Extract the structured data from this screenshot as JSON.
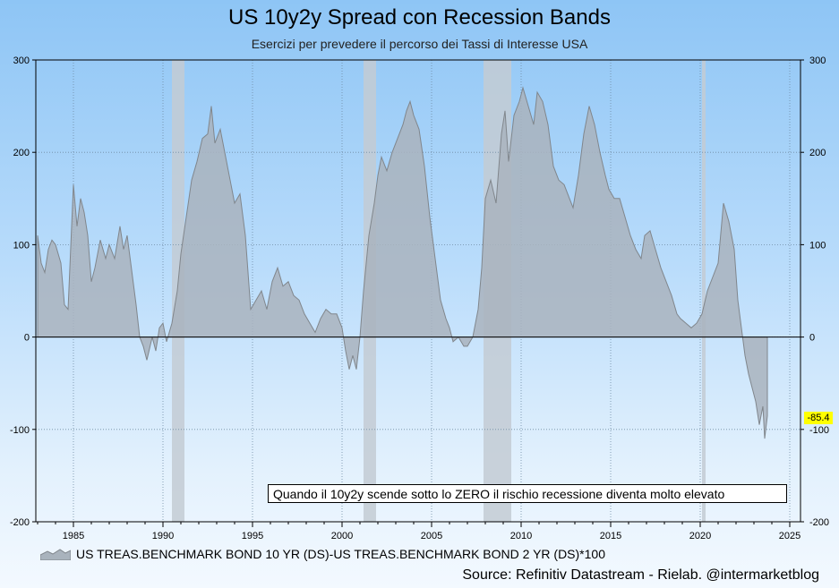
{
  "title": "US 10y2y Spread con Recession Bands",
  "subtitle": "Esercizi per prevedere il percorso dei Tassi di Interesse USA",
  "annotation": "Quando il 10y2y scende sotto lo ZERO il rischio recessione diventa molto elevato",
  "source": "Source: Refinitiv Datastream  -  Rielab. @intermarketblog",
  "last_value_label": "-85.4",
  "colors": {
    "area_fill": "#a9b3bd",
    "area_line": "#80868c",
    "recession_band": "#c3cbd3",
    "zero_line": "#000000",
    "badge": "#ffff00"
  },
  "chart_data": {
    "type": "area",
    "title": "US 10y2y Spread con Recession Bands",
    "xlabel": "",
    "ylabel": "",
    "xlim": [
      1982.9,
      2025.6
    ],
    "ylim": [
      -200,
      300
    ],
    "x_ticks": [
      "1985",
      "1990",
      "1995",
      "2000",
      "2005",
      "2010",
      "2015",
      "2020",
      "2025"
    ],
    "y_ticks": [
      "300",
      "200",
      "100",
      "0",
      "-100",
      "-200"
    ],
    "grid": true,
    "legend_position": "bottom-left",
    "recession_bands": [
      {
        "start": 1990.5,
        "end": 1991.2
      },
      {
        "start": 2001.2,
        "end": 2001.9
      },
      {
        "start": 2007.9,
        "end": 2009.45
      },
      {
        "start": 2020.1,
        "end": 2020.3
      }
    ],
    "series": [
      {
        "name": "US TREAS.BENCHMARK BOND 10 YR (DS)-US TREAS.BENCHMARK BOND 2 YR (DS)*100",
        "points": [
          [
            1983.0,
            110
          ],
          [
            1983.2,
            80
          ],
          [
            1983.4,
            70
          ],
          [
            1983.6,
            95
          ],
          [
            1983.8,
            105
          ],
          [
            1984.0,
            100
          ],
          [
            1984.3,
            80
          ],
          [
            1984.5,
            35
          ],
          [
            1984.7,
            30
          ],
          [
            1984.9,
            120
          ],
          [
            1985.0,
            165
          ],
          [
            1985.2,
            120
          ],
          [
            1985.4,
            150
          ],
          [
            1985.6,
            135
          ],
          [
            1985.8,
            110
          ],
          [
            1986.0,
            60
          ],
          [
            1986.2,
            75
          ],
          [
            1986.5,
            105
          ],
          [
            1986.8,
            85
          ],
          [
            1987.0,
            100
          ],
          [
            1987.3,
            85
          ],
          [
            1987.6,
            120
          ],
          [
            1987.8,
            95
          ],
          [
            1988.0,
            110
          ],
          [
            1988.2,
            80
          ],
          [
            1988.5,
            35
          ],
          [
            1988.7,
            0
          ],
          [
            1988.9,
            -10
          ],
          [
            1989.1,
            -25
          ],
          [
            1989.4,
            0
          ],
          [
            1989.6,
            -15
          ],
          [
            1989.8,
            10
          ],
          [
            1990.0,
            15
          ],
          [
            1990.2,
            -5
          ],
          [
            1990.5,
            15
          ],
          [
            1990.8,
            50
          ],
          [
            1991.0,
            90
          ],
          [
            1991.3,
            130
          ],
          [
            1991.6,
            170
          ],
          [
            1991.9,
            190
          ],
          [
            1992.2,
            215
          ],
          [
            1992.5,
            220
          ],
          [
            1992.7,
            250
          ],
          [
            1992.9,
            210
          ],
          [
            1993.2,
            225
          ],
          [
            1993.5,
            195
          ],
          [
            1993.8,
            165
          ],
          [
            1994.0,
            145
          ],
          [
            1994.3,
            155
          ],
          [
            1994.6,
            110
          ],
          [
            1994.9,
            30
          ],
          [
            1995.2,
            40
          ],
          [
            1995.5,
            50
          ],
          [
            1995.8,
            30
          ],
          [
            1996.1,
            60
          ],
          [
            1996.4,
            75
          ],
          [
            1996.7,
            55
          ],
          [
            1997.0,
            60
          ],
          [
            1997.3,
            45
          ],
          [
            1997.6,
            40
          ],
          [
            1997.9,
            25
          ],
          [
            1998.2,
            15
          ],
          [
            1998.5,
            5
          ],
          [
            1998.8,
            20
          ],
          [
            1999.1,
            30
          ],
          [
            1999.4,
            25
          ],
          [
            1999.7,
            25
          ],
          [
            2000.0,
            10
          ],
          [
            2000.2,
            -15
          ],
          [
            2000.4,
            -35
          ],
          [
            2000.6,
            -20
          ],
          [
            2000.8,
            -35
          ],
          [
            2001.0,
            0
          ],
          [
            2001.2,
            50
          ],
          [
            2001.5,
            110
          ],
          [
            2001.8,
            145
          ],
          [
            2002.0,
            175
          ],
          [
            2002.2,
            195
          ],
          [
            2002.5,
            180
          ],
          [
            2002.8,
            200
          ],
          [
            2003.1,
            215
          ],
          [
            2003.4,
            230
          ],
          [
            2003.6,
            245
          ],
          [
            2003.8,
            255
          ],
          [
            2004.0,
            240
          ],
          [
            2004.3,
            225
          ],
          [
            2004.6,
            185
          ],
          [
            2004.9,
            130
          ],
          [
            2005.2,
            85
          ],
          [
            2005.5,
            40
          ],
          [
            2005.8,
            20
          ],
          [
            2006.0,
            10
          ],
          [
            2006.2,
            -5
          ],
          [
            2006.5,
            0
          ],
          [
            2006.8,
            -10
          ],
          [
            2007.0,
            -10
          ],
          [
            2007.3,
            0
          ],
          [
            2007.6,
            30
          ],
          [
            2007.8,
            75
          ],
          [
            2008.0,
            150
          ],
          [
            2008.3,
            170
          ],
          [
            2008.6,
            145
          ],
          [
            2008.9,
            220
          ],
          [
            2009.1,
            245
          ],
          [
            2009.3,
            190
          ],
          [
            2009.6,
            240
          ],
          [
            2009.9,
            255
          ],
          [
            2010.1,
            270
          ],
          [
            2010.4,
            250
          ],
          [
            2010.7,
            230
          ],
          [
            2010.9,
            265
          ],
          [
            2011.2,
            255
          ],
          [
            2011.5,
            230
          ],
          [
            2011.8,
            185
          ],
          [
            2012.1,
            170
          ],
          [
            2012.4,
            165
          ],
          [
            2012.7,
            150
          ],
          [
            2012.9,
            140
          ],
          [
            2013.2,
            175
          ],
          [
            2013.5,
            220
          ],
          [
            2013.8,
            250
          ],
          [
            2014.1,
            230
          ],
          [
            2014.4,
            200
          ],
          [
            2014.7,
            175
          ],
          [
            2014.9,
            160
          ],
          [
            2015.2,
            150
          ],
          [
            2015.5,
            150
          ],
          [
            2015.8,
            130
          ],
          [
            2016.1,
            110
          ],
          [
            2016.4,
            95
          ],
          [
            2016.7,
            85
          ],
          [
            2016.9,
            110
          ],
          [
            2017.2,
            115
          ],
          [
            2017.5,
            95
          ],
          [
            2017.8,
            75
          ],
          [
            2018.1,
            60
          ],
          [
            2018.4,
            45
          ],
          [
            2018.7,
            25
          ],
          [
            2018.9,
            20
          ],
          [
            2019.2,
            15
          ],
          [
            2019.5,
            10
          ],
          [
            2019.8,
            15
          ],
          [
            2020.1,
            25
          ],
          [
            2020.4,
            50
          ],
          [
            2020.7,
            65
          ],
          [
            2021.0,
            80
          ],
          [
            2021.3,
            145
          ],
          [
            2021.6,
            125
          ],
          [
            2021.9,
            95
          ],
          [
            2022.1,
            40
          ],
          [
            2022.3,
            10
          ],
          [
            2022.5,
            -20
          ],
          [
            2022.7,
            -40
          ],
          [
            2022.9,
            -55
          ],
          [
            2023.1,
            -70
          ],
          [
            2023.3,
            -95
          ],
          [
            2023.5,
            -75
          ],
          [
            2023.6,
            -110
          ],
          [
            2023.75,
            -85.4
          ]
        ]
      }
    ]
  }
}
